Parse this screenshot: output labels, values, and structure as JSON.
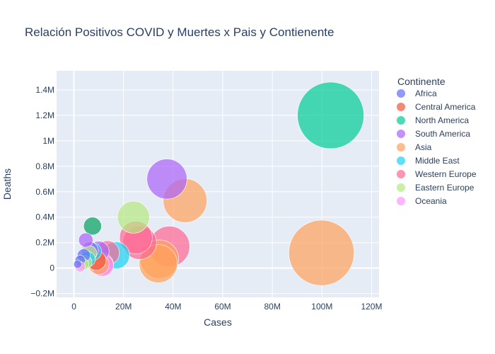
{
  "chart_data": {
    "type": "scatter",
    "title": "Relación Positivos COVID y Muertes x Pais y Contienente",
    "xlabel": "Cases",
    "ylabel": "Deaths",
    "xlim": [
      -7000000,
      123000000
    ],
    "ylim": [
      -230000,
      1550000
    ],
    "x_ticks": [
      0,
      20000000,
      40000000,
      60000000,
      80000000,
      100000000,
      120000000
    ],
    "x_tick_labels": [
      "0",
      "20M",
      "40M",
      "60M",
      "80M",
      "100M",
      "120M"
    ],
    "y_ticks": [
      -200000,
      0,
      200000,
      400000,
      600000,
      800000,
      1000000,
      1200000,
      1400000
    ],
    "y_tick_labels": [
      "−0.2M",
      "0",
      "0.2M",
      "0.4M",
      "0.6M",
      "0.8M",
      "1M",
      "1.2M",
      "1.4M"
    ],
    "grid": true,
    "legend_title": "Continente",
    "legend_position": "right",
    "bubble_size_note": "bubble area scales with cases",
    "series": [
      {
        "name": "Africa",
        "color": "#636efa",
        "points": [
          {
            "x": 4000000,
            "y": 100000,
            "s": 4000000
          },
          {
            "x": 2500000,
            "y": 60000,
            "s": 2500000
          },
          {
            "x": 1500000,
            "y": 30000,
            "s": 1500000
          }
        ]
      },
      {
        "name": "Central America",
        "color": "#ef553b",
        "points": [
          {
            "x": 7500000,
            "y": 330000,
            "s": 7500000
          },
          {
            "x": 9000000,
            "y": 60000,
            "s": 9000000
          }
        ]
      },
      {
        "name": "North America",
        "color": "#00cc96",
        "points": [
          {
            "x": 103500000,
            "y": 1200000,
            "s": 103500000
          },
          {
            "x": 7500000,
            "y": 330000,
            "s": 7500000
          }
        ]
      },
      {
        "name": "South America",
        "color": "#ab63fa",
        "points": [
          {
            "x": 37500000,
            "y": 700000,
            "s": 37500000
          },
          {
            "x": 4800000,
            "y": 220000,
            "s": 4800000
          },
          {
            "x": 10000000,
            "y": 130000,
            "s": 10000000
          },
          {
            "x": 6500000,
            "y": 140000,
            "s": 6500000
          }
        ]
      },
      {
        "name": "Asia",
        "color": "#ffa15a",
        "points": [
          {
            "x": 99800000,
            "y": 120000,
            "s": 99800000
          },
          {
            "x": 44800000,
            "y": 530000,
            "s": 44800000
          },
          {
            "x": 34000000,
            "y": 35000,
            "s": 34000000
          },
          {
            "x": 34500000,
            "y": 70000,
            "s": 34500000
          },
          {
            "x": 10000000,
            "y": 30000,
            "s": 10000000
          }
        ]
      },
      {
        "name": "Middle East",
        "color": "#19d3f3",
        "points": [
          {
            "x": 17000000,
            "y": 100000,
            "s": 17000000
          },
          {
            "x": 7500000,
            "y": 130000,
            "s": 7500000
          },
          {
            "x": 5500000,
            "y": 70000,
            "s": 5500000
          }
        ]
      },
      {
        "name": "Western Europe",
        "color": "#ff6692",
        "points": [
          {
            "x": 38500000,
            "y": 170000,
            "s": 38500000
          },
          {
            "x": 26500000,
            "y": 200000,
            "s": 26500000
          },
          {
            "x": 25000000,
            "y": 240000,
            "s": 25000000
          },
          {
            "x": 13500000,
            "y": 120000,
            "s": 13500000
          },
          {
            "x": 11500000,
            "y": 30000,
            "s": 11500000
          }
        ]
      },
      {
        "name": "Eastern Europe",
        "color": "#b6e880",
        "points": [
          {
            "x": 24000000,
            "y": 400000,
            "s": 24000000
          },
          {
            "x": 6000000,
            "y": 115000,
            "s": 6000000
          },
          {
            "x": 3500000,
            "y": 30000,
            "s": 3500000
          },
          {
            "x": 4500000,
            "y": 45000,
            "s": 4500000
          }
        ]
      },
      {
        "name": "Oceania",
        "color": "#ff97ff",
        "points": [
          {
            "x": 11500000,
            "y": 20000,
            "s": 11500000
          },
          {
            "x": 2500000,
            "y": 10000,
            "s": 2500000
          }
        ]
      }
    ]
  }
}
